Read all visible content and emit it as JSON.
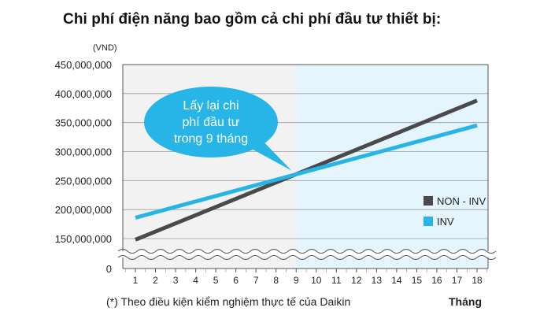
{
  "chart_data": {
    "type": "line",
    "title": "Chi phí điện năng bao gồm cả chi phí đầu tư thiết bị:",
    "ylabel": "(VND)",
    "xlabel": "Tháng",
    "x": [
      1,
      2,
      3,
      4,
      5,
      6,
      7,
      8,
      9,
      10,
      11,
      12,
      13,
      14,
      15,
      16,
      17,
      18
    ],
    "yticks": [
      0,
      150000000,
      200000000,
      250000000,
      300000000,
      350000000,
      400000000,
      450000000
    ],
    "ytick_labels": [
      "0",
      "150,000,000",
      "200,000,000",
      "250,000,000",
      "300,000,000",
      "350,000,000",
      "400,000,000",
      "450,000,000"
    ],
    "ylim": [
      100000000,
      450000000
    ],
    "axis_break": "100,000,000 → 0",
    "series": [
      {
        "name": "NON - INV",
        "color": "#4a4a4d",
        "start": [
          1,
          148000000
        ],
        "end": [
          18,
          388000000
        ]
      },
      {
        "name": "INV",
        "color": "#27b4e6",
        "start": [
          1,
          186000000
        ],
        "end": [
          18,
          345000000
        ]
      }
    ],
    "callout": {
      "lines": [
        "Lấy lại chi",
        "phí đầu tư",
        "trong 9 tháng"
      ],
      "points_to": [
        9,
        262000000
      ]
    },
    "shaded_after_x": 9,
    "grid": true,
    "legend": "right"
  },
  "footnote": "(*) Theo điều kiện kiểm nghiệm thực tế của Daikin",
  "colors": {
    "left_bg": "#f2f2f2",
    "right_bg": "#e5f5fd",
    "callout": "#27b4e6"
  }
}
